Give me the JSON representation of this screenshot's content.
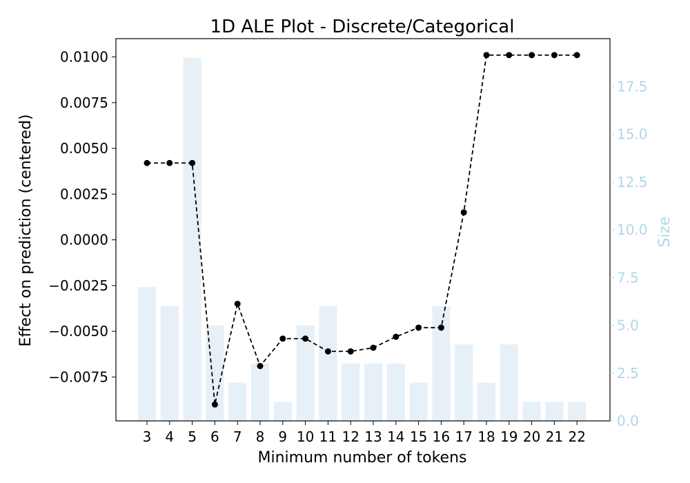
{
  "chart_data": {
    "type": "line",
    "title": "1D ALE Plot - Discrete/Categorical",
    "xlabel": "Minimum number of tokens",
    "ylabel": "Effect on prediction (centered)",
    "y2label": "Size",
    "categories": [
      "3",
      "4",
      "5",
      "6",
      "7",
      "8",
      "9",
      "10",
      "11",
      "12",
      "13",
      "14",
      "15",
      "16",
      "17",
      "18",
      "19",
      "20",
      "21",
      "22"
    ],
    "series": [
      {
        "axis": "left",
        "style": "black dashed line with dot markers",
        "values": [
          0.0042,
          0.0042,
          0.0042,
          -0.009,
          -0.0035,
          -0.0069,
          -0.0054,
          -0.0054,
          -0.0061,
          -0.0061,
          -0.0059,
          -0.0053,
          -0.0048,
          -0.0048,
          0.0015,
          0.0101,
          0.0101,
          0.0101,
          0.0101,
          0.0101
        ]
      },
      {
        "axis": "right",
        "style": "bars",
        "values": [
          7,
          6,
          19,
          5,
          2,
          3,
          1,
          5,
          6,
          3,
          3,
          3,
          2,
          6,
          4,
          2,
          4,
          1,
          1,
          1
        ]
      }
    ],
    "ylim": [
      -0.0099,
      0.011
    ],
    "yticks": [
      -0.0075,
      -0.005,
      -0.0025,
      0.0,
      0.0025,
      0.005,
      0.0075,
      0.01
    ],
    "ytick_labels": [
      "−0.0075",
      "−0.0050",
      "−0.0025",
      "0.0000",
      "0.0025",
      "0.0050",
      "0.0075",
      "0.0100"
    ],
    "y2lim": [
      0,
      20
    ],
    "y2ticks": [
      0.0,
      2.5,
      5.0,
      7.5,
      10.0,
      12.5,
      15.0,
      17.5
    ],
    "y2tick_labels": [
      "0.0",
      "2.5",
      "5.0",
      "7.5",
      "10.0",
      "12.5",
      "15.0",
      "17.5"
    ],
    "grid": false,
    "colors": {
      "line": "#000000",
      "bars": "#e7eff7",
      "right_axis": "#add8e6"
    }
  }
}
